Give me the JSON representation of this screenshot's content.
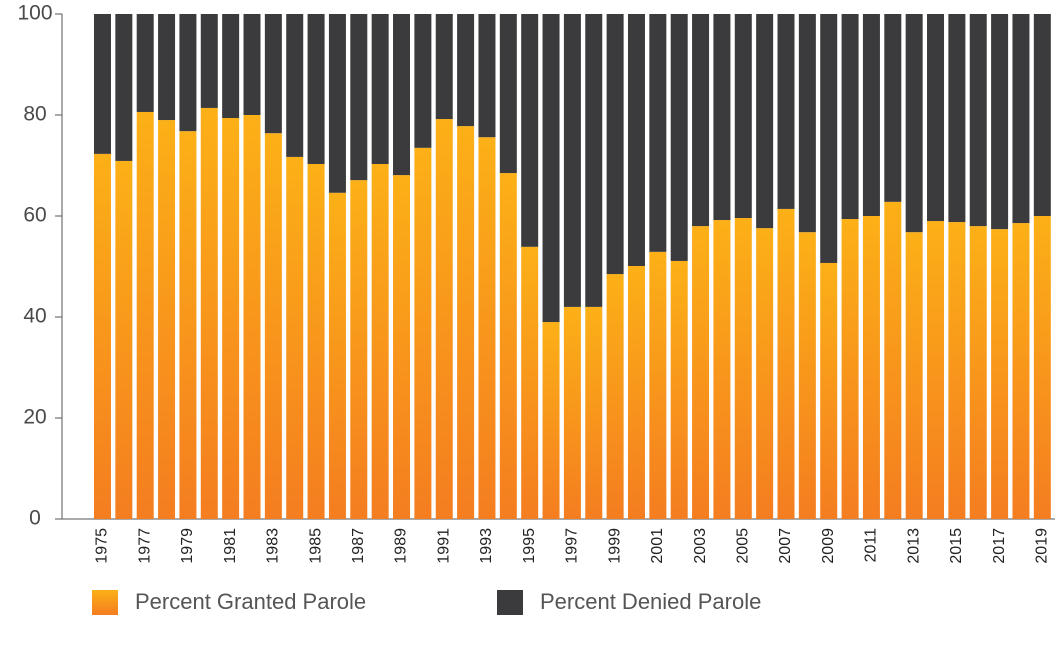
{
  "chart_data": {
    "type": "stacked_bar",
    "categories": [
      "1975",
      null,
      "1977",
      null,
      "1979",
      null,
      "1981",
      null,
      "1983",
      null,
      "1985",
      null,
      "1987",
      null,
      "1989",
      null,
      "1991",
      null,
      "1993",
      null,
      "1995",
      null,
      "1997",
      null,
      "1999",
      null,
      "2001",
      null,
      "2003",
      null,
      "2005",
      null,
      "2007",
      null,
      "2009",
      null,
      "2011",
      null,
      "2013",
      null,
      "2015",
      null,
      "2017",
      null,
      "2019"
    ],
    "series": [
      {
        "name": "Percent Granted Parole",
        "color": "#f7941d",
        "values": [
          72.3,
          70.9,
          80.6,
          79,
          76.8,
          81.4,
          79.4,
          80,
          76.4,
          71.7,
          70.3,
          64.6,
          67.1,
          70.3,
          68.1,
          73.5,
          79.2,
          77.8,
          75.6,
          68.5,
          53.9,
          39,
          42,
          42,
          48.5,
          50.1,
          52.9,
          51.1,
          58,
          59.2,
          59.6,
          57.6,
          61.4,
          56.8,
          50.7,
          59.4,
          60,
          62.8,
          56.8,
          59,
          58.8,
          58,
          57.4,
          58.6,
          60
        ]
      },
      {
        "name": "Percent Denied Parole",
        "color": "#3b3a3c",
        "values": [
          27.7,
          29.1,
          19.4,
          21,
          23.2,
          18.6,
          20.6,
          20,
          23.6,
          28.3,
          29.7,
          35.4,
          32.9,
          29.7,
          31.9,
          26.5,
          20.8,
          22.2,
          24.4,
          31.5,
          46.1,
          61,
          58,
          58,
          51.5,
          49.9,
          47.1,
          48.9,
          42,
          40.8,
          40.4,
          42.4,
          38.6,
          43.2,
          49.3,
          40.6,
          40,
          37.2,
          43.2,
          41,
          41.2,
          42,
          42.6,
          41.4,
          40
        ]
      }
    ],
    "ylim": [
      0,
      100
    ],
    "yticks": [
      0,
      20,
      40,
      60,
      80,
      100
    ]
  }
}
